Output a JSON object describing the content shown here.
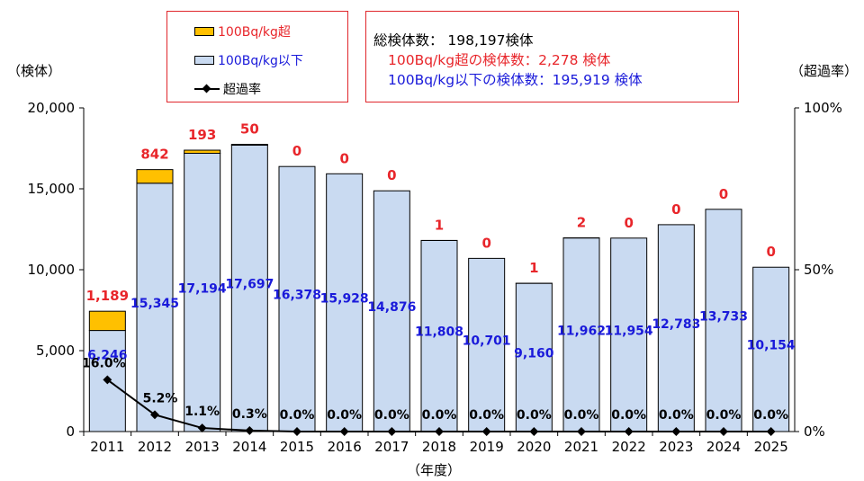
{
  "colors": {
    "over": "#FFC000",
    "under": "#C9DAF1",
    "over_label": "#E8262B",
    "under_label": "#1A1ADA",
    "line": "#000000",
    "frame": "#E0262B"
  },
  "legend": {
    "over_label": "100Bq/kg超",
    "under_label": "100Bq/kg以下",
    "rate_label": "超過率"
  },
  "summary": {
    "total": "総検体数： 198,197検体",
    "over": "100Bq/kg超の検体数：2,278 検体",
    "under": "100Bq/kg以下の検体数：195,919 検体"
  },
  "axis": {
    "left_title": "（検体）",
    "right_title": "（超過率）",
    "x_title": "（年度）"
  },
  "chart_data": {
    "type": "bar",
    "stacked": true,
    "title": "",
    "categories": [
      "2011",
      "2012",
      "2013",
      "2014",
      "2015",
      "2016",
      "2017",
      "2018",
      "2019",
      "2020",
      "2021",
      "2022",
      "2023",
      "2024",
      "2025"
    ],
    "series": [
      {
        "name": "100Bq/kg以下",
        "values": [
          6246,
          15345,
          17194,
          17697,
          16378,
          15928,
          14876,
          11808,
          10701,
          9160,
          11962,
          11954,
          12783,
          13733,
          10154
        ],
        "labels": [
          "6,246",
          "15,345",
          "17,194",
          "17,697",
          "16,378",
          "15,928",
          "14,876",
          "11,808",
          "10,701",
          "9,160",
          "11,962",
          "11,954",
          "12,783",
          "13,733",
          "10,154"
        ]
      },
      {
        "name": "100Bq/kg超",
        "values": [
          1189,
          842,
          193,
          50,
          0,
          0,
          0,
          1,
          0,
          1,
          2,
          0,
          0,
          0,
          0
        ],
        "labels": [
          "1,189",
          "842",
          "193",
          "50",
          "0",
          "0",
          "0",
          "1",
          "0",
          "1",
          "2",
          "0",
          "0",
          "0",
          "0"
        ]
      },
      {
        "name": "超過率",
        "type": "line",
        "axis": "right",
        "values": [
          16.0,
          5.2,
          1.1,
          0.3,
          0.0,
          0.0,
          0.0,
          0.0,
          0.0,
          0.0,
          0.0,
          0.0,
          0.0,
          0.0,
          0.0
        ],
        "labels": [
          "16.0%",
          "5.2%",
          "1.1%",
          "0.3%",
          "0.0%",
          "0.0%",
          "0.0%",
          "0.0%",
          "0.0%",
          "0.0%",
          "0.0%",
          "0.0%",
          "0.0%",
          "0.0%",
          "0.0%"
        ]
      }
    ],
    "y_left": {
      "range": [
        0,
        20000
      ],
      "ticks": [
        0,
        5000,
        10000,
        15000,
        20000
      ],
      "tick_labels": [
        "0",
        "5,000",
        "10,000",
        "15,000",
        "20,000"
      ]
    },
    "y_right": {
      "range": [
        0,
        100
      ],
      "ticks": [
        0,
        50,
        100
      ],
      "tick_labels": [
        "0%",
        "50%",
        "100%"
      ]
    },
    "xlabel": "（年度）",
    "ylabel": "（検体）",
    "y2label": "（超過率）"
  }
}
